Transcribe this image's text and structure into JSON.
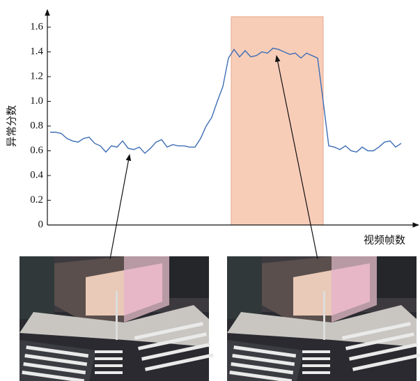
{
  "chart_data": {
    "type": "line",
    "ylabel": "异常分数",
    "xlabel": "视频帧数",
    "series": [
      {
        "color": "#3c6db4",
        "values": [
          0.75,
          0.75,
          0.74,
          0.7,
          0.68,
          0.67,
          0.7,
          0.71,
          0.66,
          0.64,
          0.59,
          0.64,
          0.63,
          0.68,
          0.62,
          0.61,
          0.63,
          0.58,
          0.62,
          0.67,
          0.69,
          0.63,
          0.65,
          0.64,
          0.64,
          0.63,
          0.63,
          0.7,
          0.8,
          0.87,
          1.0,
          1.12,
          1.35,
          1.42,
          1.36,
          1.41,
          1.36,
          1.37,
          1.4,
          1.39,
          1.43,
          1.42,
          1.4,
          1.38,
          1.39,
          1.35,
          1.39,
          1.37,
          1.35,
          1.0,
          0.64,
          0.63,
          0.61,
          0.64,
          0.6,
          0.59,
          0.63,
          0.6,
          0.6,
          0.63,
          0.67,
          0.68,
          0.63,
          0.66
        ]
      }
    ],
    "xlim": [
      -0.5,
      65.75
    ],
    "ylim": [
      0,
      1.6
    ],
    "yticks": [
      0,
      0.2,
      0.4,
      0.6,
      0.8,
      {
        "value": 1,
        "label": "1.0"
      },
      1.2,
      1.4,
      1.6
    ],
    "highlight": {
      "xlim": [
        32.5,
        49
      ],
      "color": "#f8cdb8"
    }
  }
}
